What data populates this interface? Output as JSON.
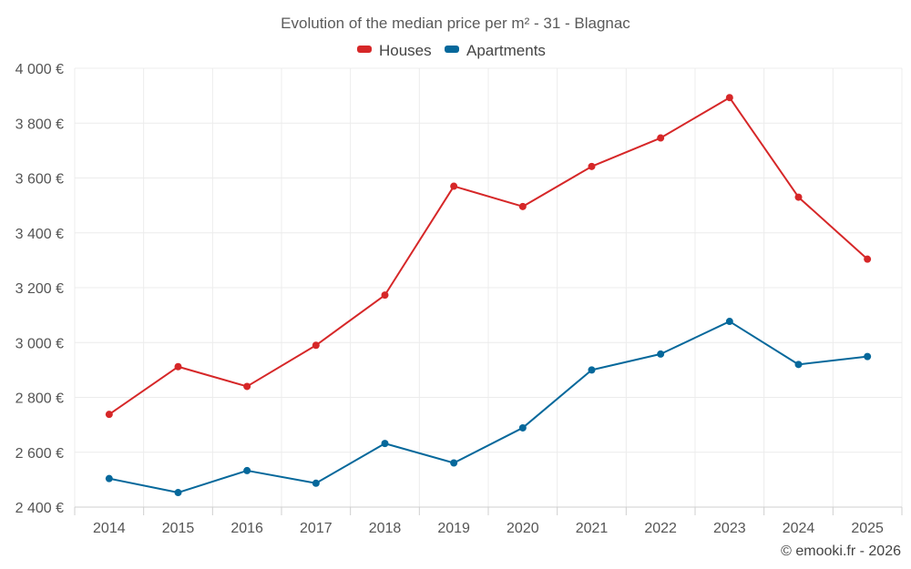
{
  "chart_data": {
    "type": "line",
    "title": "Evolution of the median price per m² - 31 - Blagnac",
    "xlabel": "",
    "ylabel": "",
    "categories": [
      "2014",
      "2015",
      "2016",
      "2017",
      "2018",
      "2019",
      "2020",
      "2021",
      "2022",
      "2023",
      "2024",
      "2025"
    ],
    "ylim": [
      2400,
      4000
    ],
    "yticks": [
      2400,
      2600,
      2800,
      3000,
      3200,
      3400,
      3600,
      3800,
      4000
    ],
    "ytick_labels": [
      "2 400 €",
      "2 600 €",
      "2 800 €",
      "3 000 €",
      "3 200 €",
      "3 400 €",
      "3 600 €",
      "3 800 €",
      "4 000 €"
    ],
    "grid": true,
    "legend_position": "top-center",
    "series": [
      {
        "name": "Houses",
        "color": "#d62728",
        "values": [
          2738,
          2912,
          2840,
          2990,
          3173,
          3570,
          3496,
          3642,
          3746,
          3893,
          3530,
          3304
        ]
      },
      {
        "name": "Apartments",
        "color": "#05689b",
        "values": [
          2504,
          2453,
          2533,
          2487,
          2632,
          2561,
          2689,
          2900,
          2958,
          3077,
          2920,
          2949
        ]
      }
    ]
  },
  "credit": "© emooki.fr - 2026"
}
